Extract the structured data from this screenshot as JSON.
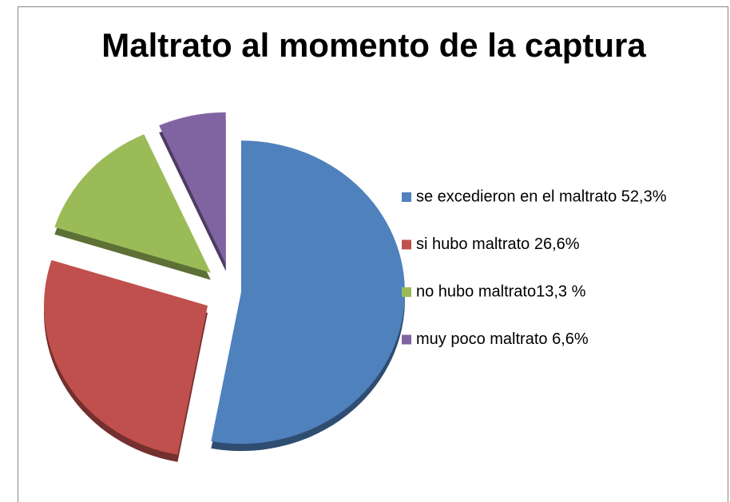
{
  "chart_data": {
    "type": "pie",
    "title": "Maltrato al momento de la captura",
    "series": [
      {
        "name": "se excedieron en el maltrato 52,3%",
        "color": "#4f81bd",
        "values": [
          52.3
        ]
      },
      {
        "name": "si hubo maltrato 26,6%",
        "color": "#c0504d",
        "values": [
          26.6
        ]
      },
      {
        "name": "no hubo maltrato13,3 %",
        "color": "#9bbb59",
        "values": [
          13.3
        ]
      },
      {
        "name": "muy poco maltrato 6,6%",
        "color": "#8064a2",
        "values": [
          6.6
        ]
      }
    ],
    "legend": "right"
  }
}
